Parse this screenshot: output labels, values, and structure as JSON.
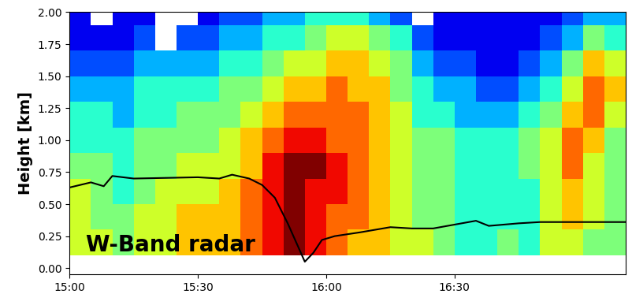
{
  "chart_data": {
    "type": "heatmap",
    "ylabel": "Height [km]",
    "annotation": "W-Band radar",
    "x_edges": [
      900,
      905,
      910,
      915,
      920,
      925,
      930,
      935,
      940,
      945,
      950,
      955,
      960,
      965,
      970,
      975,
      980,
      985,
      990,
      995,
      1000,
      1005,
      1010,
      1015,
      1020,
      1025,
      1030
    ],
    "y_edges": [
      0.1,
      0.3,
      0.5,
      0.7,
      0.9,
      1.1,
      1.3,
      1.5,
      1.7,
      1.9,
      2.0
    ],
    "cells": [
      [
        6,
        6,
        5,
        6,
        6,
        7,
        7,
        7,
        8,
        9,
        10,
        9,
        8,
        7,
        7,
        6,
        6,
        5,
        4,
        4,
        5,
        4,
        6,
        6,
        5,
        5
      ],
      [
        6,
        5,
        5,
        6,
        6,
        7,
        7,
        7,
        8,
        9,
        10,
        9,
        8,
        8,
        7,
        6,
        5,
        5,
        4,
        4,
        4,
        4,
        6,
        7,
        6,
        5
      ],
      [
        6,
        5,
        4,
        5,
        6,
        6,
        6,
        7,
        8,
        9,
        10,
        9,
        9,
        8,
        7,
        6,
        5,
        5,
        4,
        4,
        4,
        4,
        6,
        7,
        6,
        5
      ],
      [
        5,
        5,
        4,
        5,
        5,
        6,
        6,
        6,
        7,
        9,
        10,
        10,
        9,
        8,
        7,
        6,
        5,
        5,
        4,
        4,
        4,
        5,
        6,
        8,
        6,
        5
      ],
      [
        4,
        4,
        4,
        5,
        5,
        5,
        5,
        6,
        7,
        8,
        9,
        9,
        8,
        8,
        7,
        6,
        5,
        5,
        4,
        4,
        4,
        5,
        6,
        8,
        7,
        5
      ],
      [
        4,
        4,
        3,
        4,
        4,
        5,
        5,
        5,
        6,
        7,
        8,
        8,
        8,
        8,
        7,
        6,
        4,
        4,
        3,
        3,
        3,
        4,
        5,
        7,
        8,
        6
      ],
      [
        3,
        3,
        3,
        4,
        4,
        4,
        4,
        5,
        5,
        6,
        7,
        7,
        8,
        7,
        7,
        5,
        4,
        3,
        3,
        2,
        2,
        3,
        4,
        6,
        8,
        7
      ],
      [
        2,
        2,
        2,
        3,
        3,
        3,
        3,
        4,
        4,
        5,
        6,
        6,
        7,
        7,
        6,
        5,
        3,
        2,
        2,
        1,
        1,
        2,
        3,
        5,
        7,
        6
      ],
      [
        1,
        1,
        1,
        2,
        null,
        2,
        2,
        3,
        3,
        4,
        4,
        5,
        6,
        6,
        5,
        4,
        2,
        1,
        1,
        1,
        1,
        1,
        2,
        3,
        5,
        4
      ],
      [
        1,
        null,
        1,
        1,
        null,
        null,
        1,
        2,
        2,
        3,
        3,
        4,
        4,
        4,
        3,
        2,
        null,
        1,
        1,
        1,
        1,
        1,
        1,
        2,
        3,
        3
      ]
    ],
    "clim": [
      0,
      10
    ],
    "xlim": [
      900,
      1030
    ],
    "ylim": [
      -0.05,
      2.0
    ],
    "xticks": [
      {
        "value": 900,
        "label": "15:00"
      },
      {
        "value": 930,
        "label": "15:30"
      },
      {
        "value": 960,
        "label": "16:00"
      },
      {
        "value": 990,
        "label": "16:30"
      }
    ],
    "yticks": [
      {
        "value": 0,
        "label": "0.00"
      },
      {
        "value": 0.25,
        "label": "0.25"
      },
      {
        "value": 0.5,
        "label": "0.50"
      },
      {
        "value": 0.75,
        "label": "0.75"
      },
      {
        "value": 1.0,
        "label": "1.00"
      },
      {
        "value": 1.25,
        "label": "1.25"
      },
      {
        "value": 1.5,
        "label": "1.50"
      },
      {
        "value": 1.75,
        "label": "1.75"
      },
      {
        "value": 2.0,
        "label": "2.00"
      }
    ],
    "grid": false,
    "series": [
      {
        "type": "line",
        "color": "#000000",
        "x": [
          900,
          905,
          908,
          910,
          915,
          930,
          935,
          938,
          942,
          945,
          948,
          951,
          953,
          955,
          957,
          959,
          962,
          968,
          975,
          980,
          985,
          990,
          995,
          998,
          1005,
          1010,
          1030
        ],
        "values": [
          0.63,
          0.67,
          0.64,
          0.72,
          0.7,
          0.71,
          0.7,
          0.73,
          0.7,
          0.65,
          0.55,
          0.35,
          0.2,
          0.05,
          0.12,
          0.22,
          0.25,
          0.28,
          0.32,
          0.31,
          0.31,
          0.34,
          0.37,
          0.33,
          0.35,
          0.36,
          0.36
        ]
      }
    ]
  }
}
